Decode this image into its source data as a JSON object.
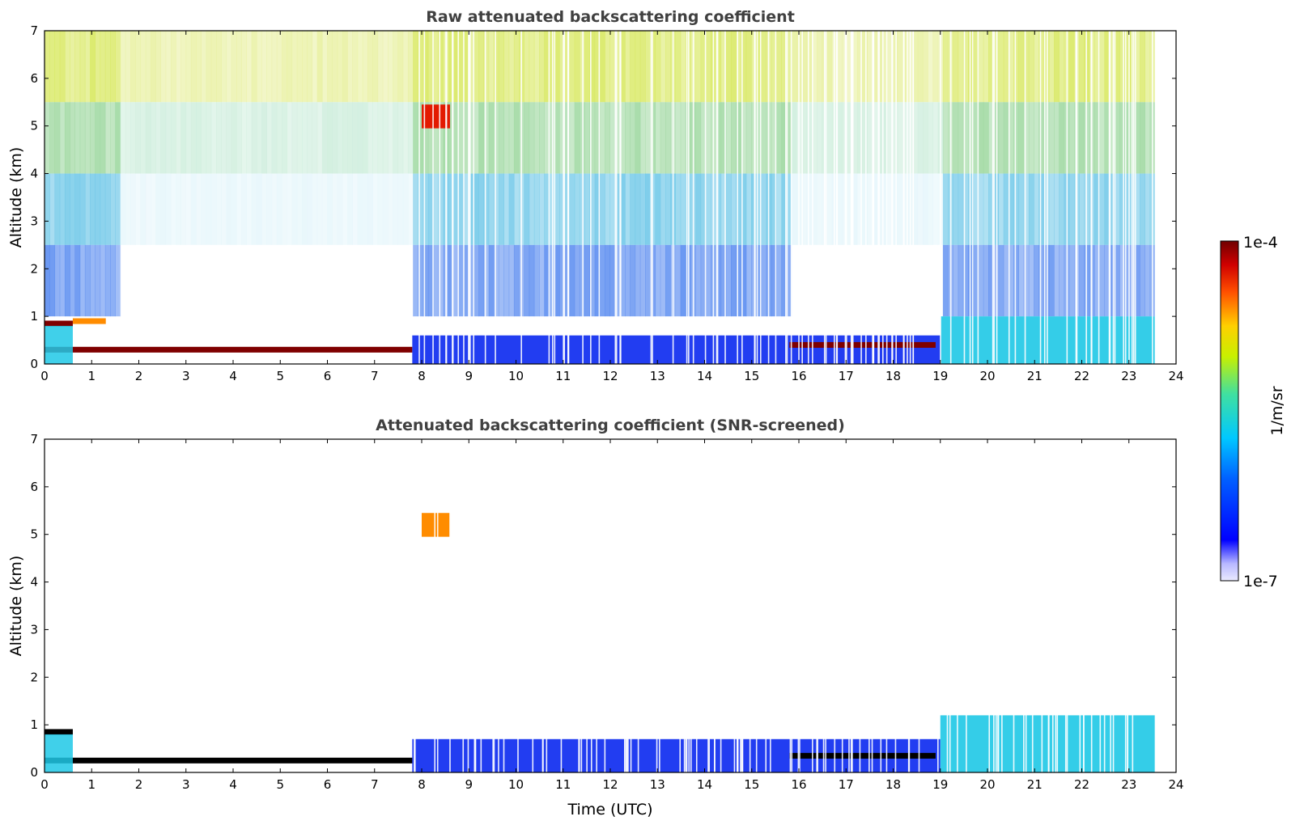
{
  "chart_data": [
    {
      "type": "heatmap",
      "title": "Raw attenuated backscattering coefficient",
      "xlabel": "",
      "ylabel": "Altitude (km)",
      "xlim": [
        0,
        24
      ],
      "ylim": [
        0,
        7
      ],
      "xticks": [
        "0",
        "1",
        "2",
        "3",
        "4",
        "5",
        "6",
        "7",
        "8",
        "9",
        "10",
        "11",
        "12",
        "13",
        "14",
        "15",
        "16",
        "17",
        "18",
        "19",
        "20",
        "21",
        "22",
        "23",
        "24"
      ],
      "yticks": [
        "0",
        "1",
        "2",
        "3",
        "4",
        "5",
        "6",
        "7"
      ],
      "data_end_hour": 23.55,
      "features": [
        {
          "feature": "cloud layer",
          "t_start": 0.0,
          "t_end": 0.6,
          "alt_km": 0.85,
          "level": "high"
        },
        {
          "feature": "cloud layer",
          "t_start": 0.6,
          "t_end": 1.3,
          "alt_km": 0.9,
          "level": "medium"
        },
        {
          "feature": "cloud layer",
          "t_start": 0.0,
          "t_end": 7.8,
          "alt_km": 0.3,
          "level": "high"
        },
        {
          "feature": "aerosol plume",
          "t_start": 8.0,
          "t_end": 8.6,
          "alt_km": 5.2,
          "level": "high"
        },
        {
          "feature": "boundary layer",
          "t_start": 7.8,
          "t_end": 19.0,
          "alt_km": 0.3,
          "level": "low"
        },
        {
          "feature": "cloud layer",
          "t_start": 15.8,
          "t_end": 18.9,
          "alt_km": 0.4,
          "level": "high"
        },
        {
          "feature": "boundary layer",
          "t_start": 19.0,
          "t_end": 23.55,
          "alt_km": 0.5,
          "level": "low"
        }
      ]
    },
    {
      "type": "heatmap",
      "title": "Attenuated backscattering coefficient (SNR-screened)",
      "xlabel": "Time (UTC)",
      "ylabel": "Altitude (km)",
      "xlim": [
        0,
        24
      ],
      "ylim": [
        0,
        7
      ],
      "xticks": [
        "0",
        "1",
        "2",
        "3",
        "4",
        "5",
        "6",
        "7",
        "8",
        "9",
        "10",
        "11",
        "12",
        "13",
        "14",
        "15",
        "16",
        "17",
        "18",
        "19",
        "20",
        "21",
        "22",
        "23",
        "24"
      ],
      "yticks": [
        "0",
        "1",
        "2",
        "3",
        "4",
        "5",
        "6",
        "7"
      ],
      "data_end_hour": 23.55,
      "features": [
        {
          "feature": "cloud layer",
          "t_start": 0.0,
          "t_end": 0.6,
          "alt_km": 0.85,
          "level": "saturated"
        },
        {
          "feature": "cloud layer",
          "t_start": 0.0,
          "t_end": 7.8,
          "alt_km": 0.25,
          "level": "saturated"
        },
        {
          "feature": "aerosol plume",
          "t_start": 8.0,
          "t_end": 8.6,
          "alt_km": 5.2,
          "level": "high"
        },
        {
          "feature": "boundary layer",
          "t_start": 7.8,
          "t_end": 19.0,
          "alt_km": 0.35,
          "level": "low"
        },
        {
          "feature": "cloud layer",
          "t_start": 15.8,
          "t_end": 18.9,
          "alt_km": 0.35,
          "level": "saturated"
        },
        {
          "feature": "boundary layer",
          "t_start": 19.0,
          "t_end": 23.55,
          "alt_km": 0.6,
          "level": "low"
        }
      ]
    }
  ],
  "colorbar": {
    "max_label": "1e-4",
    "min_label": "1e-7",
    "unit_label": "1/m/sr",
    "scale": "log",
    "colormap": "jet",
    "colors": {
      "dark_red": "#7f0000",
      "red": "#e31a00",
      "orange": "#ff8c00",
      "yellow": "#f0e000",
      "green": "#9ed86a",
      "cyan": "#1ec8e6",
      "blue": "#0a28f0",
      "light_blue": "#dcdcff",
      "black": "#000000"
    }
  }
}
